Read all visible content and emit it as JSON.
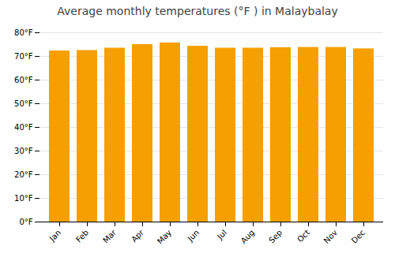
{
  "chart_data": {
    "type": "bar",
    "title": "Average monthly temperatures (°F ) in Malaybalay",
    "categories": [
      "Jan",
      "Feb",
      "Mar",
      "Apr",
      "May",
      "Jun",
      "Jul",
      "Aug",
      "Sep",
      "Oct",
      "Nov",
      "Dec"
    ],
    "values": [
      72.3,
      72.5,
      73.5,
      75.0,
      75.7,
      74.3,
      73.5,
      73.5,
      73.7,
      73.8,
      73.8,
      73.2
    ],
    "color": "#F5A000",
    "ylim": [
      0,
      80
    ],
    "yticks": [
      {
        "value": 0,
        "label": "0°F"
      },
      {
        "value": 10,
        "label": "10°F"
      },
      {
        "value": 20,
        "label": "20°F"
      },
      {
        "value": 30,
        "label": "30°F"
      },
      {
        "value": 40,
        "label": "40°F"
      },
      {
        "value": 50,
        "label": "50°F"
      },
      {
        "value": 60,
        "label": "60°F"
      },
      {
        "value": 70,
        "label": "70°F"
      },
      {
        "value": 80,
        "label": "80°F"
      }
    ],
    "grid": true
  }
}
